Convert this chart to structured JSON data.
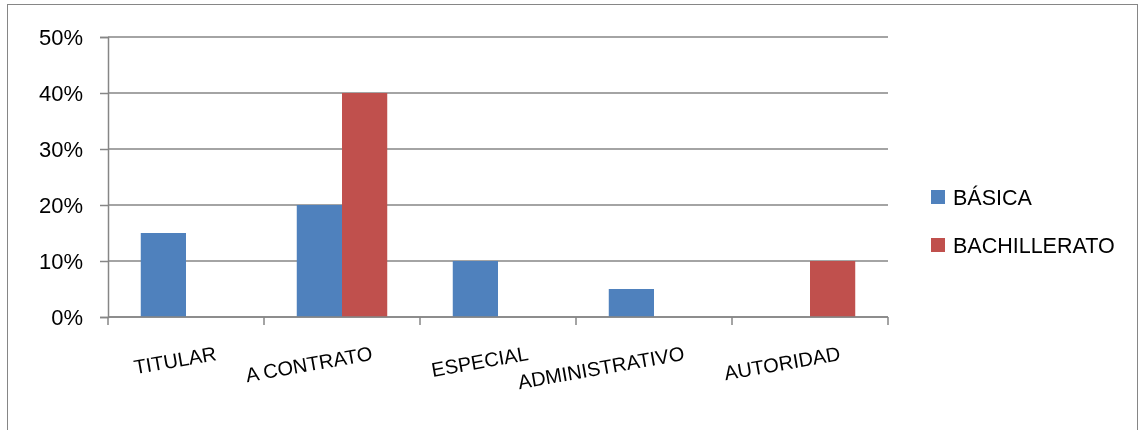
{
  "chart_data": {
    "type": "bar",
    "categories": [
      "TITULAR",
      "A CONTRATO",
      "ESPECIAL",
      "ADMINISTRATIVO",
      "AUTORIDAD"
    ],
    "series": [
      {
        "name": "BÁSICA",
        "color": "#4f81bd",
        "values": [
          15,
          20,
          10,
          5,
          0
        ]
      },
      {
        "name": "BACHILLERATO",
        "color": "#c0504d",
        "values": [
          0,
          40,
          0,
          0,
          10
        ]
      }
    ],
    "ylim": [
      0,
      50
    ],
    "yticks": [
      {
        "value": 0,
        "label": "0%"
      },
      {
        "value": 10,
        "label": "10%"
      },
      {
        "value": 20,
        "label": "20%"
      },
      {
        "value": 30,
        "label": "30%"
      },
      {
        "value": 40,
        "label": "40%"
      },
      {
        "value": 50,
        "label": "50%"
      }
    ],
    "grid": "y",
    "legend": "right"
  }
}
